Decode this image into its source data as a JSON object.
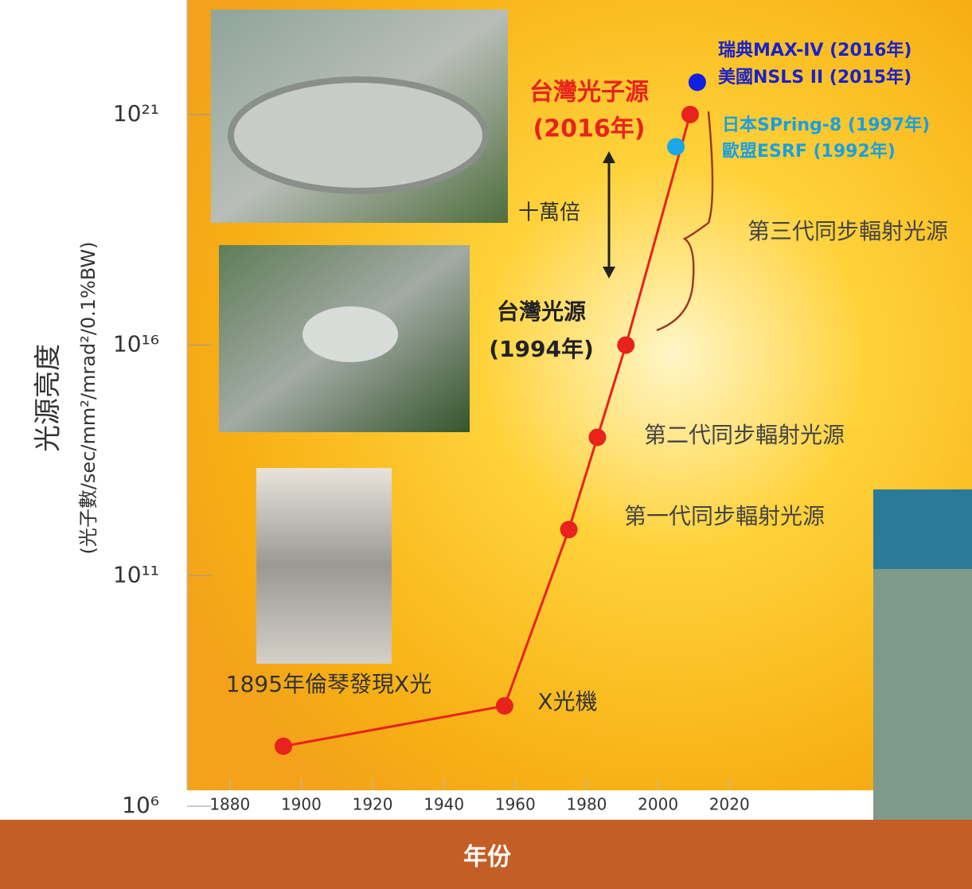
{
  "chart_data": {
    "type": "line",
    "y_label": "光源亮度",
    "y_label_units": "(光子數/sec/mm²/mrad²/0.1%BW)",
    "x_label": "年份",
    "log_y": true,
    "xlim": [
      1868,
      2088
    ],
    "xticks": [
      1880,
      1900,
      1920,
      1940,
      1960,
      1980,
      2000,
      2020
    ],
    "ylim": [
      1000000,
      1e+23
    ],
    "yticks": [
      {
        "value": 1000000,
        "label": "10⁶"
      },
      {
        "value": 100000000000,
        "label": "10¹¹"
      },
      {
        "value": 1e+16,
        "label": "10¹⁶"
      },
      {
        "value": 1e+21,
        "label": "10²¹"
      }
    ],
    "series": [
      {
        "color": "#e8221c",
        "x": [
          1895,
          1957,
          1975,
          1983,
          1991,
          2009
        ],
        "values": [
          20000000,
          150000000,
          1000000000000,
          100000000000000,
          1e+16,
          1e+21
        ]
      },
      {
        "color": "#1020e0",
        "x": [
          2011
        ],
        "values": [
          5e+21
        ]
      },
      {
        "color": "#18a8e8",
        "x": [
          2005
        ],
        "values": [
          2e+20
        ]
      }
    ],
    "annotations": [
      "台灣光子源",
      "(2016年)",
      "十萬倍",
      "台灣光源",
      "(1994年)",
      "第三代同步輻射光源",
      "第二代同步輻射光源",
      "第一代同步輻射光源",
      "1895年倫琴發現X光",
      "X光機",
      "瑞典MAX-IV (2016年)",
      "美國NSLS II (2015年)",
      "日本SPring-8 (1997年)",
      "歐盟ESRF (1992年)"
    ]
  }
}
